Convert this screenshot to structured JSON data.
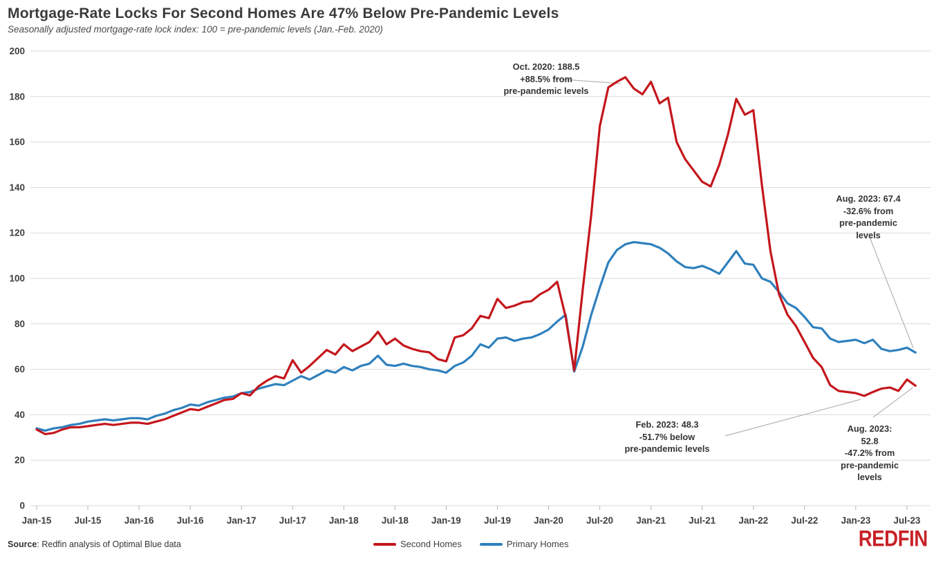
{
  "header": {
    "title": "Mortgage-Rate Locks For Second Homes Are 47% Below Pre-Pandemic Levels",
    "subtitle": "Seasonally adjusted mortgage-rate lock index: 100 = pre-pandemic levels (Jan.-Feb. 2020)"
  },
  "chart_data": {
    "type": "line",
    "x_unit": "month",
    "x_start": "Jan-2015",
    "x_end": "Aug-2023",
    "x_tick_labels": [
      "Jan-15",
      "Jul-15",
      "Jan-16",
      "Jul-16",
      "Jan-17",
      "Jul-17",
      "Jan-18",
      "Jul-18",
      "Jan-19",
      "Jul-19",
      "Jan-20",
      "Jul-20",
      "Jan-21",
      "Jul-21",
      "Jan-22",
      "Jul-22",
      "Jan-23",
      "Jul-23"
    ],
    "y_ticks": [
      0,
      20,
      40,
      60,
      80,
      100,
      120,
      140,
      160,
      180,
      200
    ],
    "ylim": [
      0,
      200
    ],
    "grid": "horizontal",
    "legend_position": "bottom-center",
    "series": [
      {
        "name": "Second Homes",
        "color": "#c4161c",
        "values": [
          33.5,
          31.5,
          32.0,
          33.5,
          34.5,
          34.5,
          35.0,
          35.5,
          36.0,
          35.5,
          36.0,
          36.5,
          36.5,
          36.0,
          37.0,
          38.0,
          39.5,
          41.0,
          42.5,
          42.0,
          43.5,
          45.0,
          46.5,
          47.0,
          49.5,
          48.5,
          52.5,
          55.0,
          57.0,
          56.0,
          64.0,
          58.5,
          61.5,
          65.0,
          68.5,
          66.5,
          71.0,
          68.0,
          70.0,
          72.0,
          76.5,
          71.0,
          73.5,
          70.5,
          69.0,
          68.0,
          67.5,
          64.5,
          63.5,
          74.0,
          75.0,
          78.0,
          83.5,
          82.5,
          91.0,
          87.0,
          88.0,
          89.5,
          90.0,
          93.0,
          95.0,
          98.5,
          83.0,
          59.5,
          95.0,
          128.0,
          167.0,
          184.0,
          186.5,
          188.5,
          183.5,
          181.0,
          186.5,
          177.0,
          179.5,
          160.0,
          152.5,
          147.5,
          142.5,
          140.5,
          150.0,
          163.0,
          179.0,
          172.0,
          174.0,
          141.0,
          112.0,
          93.0,
          84.0,
          79.0,
          72.0,
          65.0,
          61.0,
          53.0,
          50.5,
          50.0,
          49.5,
          48.3,
          50.0,
          51.5,
          52.0,
          50.5,
          55.5,
          52.8
        ]
      },
      {
        "name": "Primary Homes",
        "color": "#2e80bd",
        "values": [
          34.0,
          33.0,
          34.0,
          34.5,
          35.5,
          36.0,
          37.0,
          37.5,
          38.0,
          37.5,
          38.0,
          38.5,
          38.5,
          38.0,
          39.5,
          40.5,
          42.0,
          43.0,
          44.5,
          44.0,
          45.5,
          46.5,
          47.5,
          48.0,
          49.5,
          50.0,
          51.5,
          52.5,
          53.5,
          53.0,
          55.0,
          57.0,
          55.5,
          57.5,
          59.5,
          58.5,
          61.0,
          59.5,
          61.5,
          62.5,
          66.0,
          62.0,
          61.5,
          62.5,
          61.5,
          61.0,
          60.0,
          59.5,
          58.5,
          61.5,
          63.0,
          66.0,
          71.0,
          69.5,
          73.5,
          74.0,
          72.5,
          73.5,
          74.0,
          75.5,
          77.5,
          81.0,
          84.0,
          59.0,
          70.0,
          84.0,
          96.0,
          107.0,
          112.5,
          115.0,
          116.0,
          115.5,
          115.0,
          113.5,
          111.0,
          107.5,
          105.0,
          104.5,
          105.5,
          104.0,
          102.0,
          107.0,
          112.0,
          106.5,
          106.0,
          100.0,
          98.5,
          94.0,
          89.0,
          87.0,
          83.0,
          78.5,
          78.0,
          73.5,
          72.0,
          72.5,
          73.0,
          71.5,
          73.0,
          69.0,
          68.0,
          68.5,
          69.5,
          67.4
        ]
      }
    ],
    "annotations": [
      {
        "id": "oct-2020-peak",
        "series": "Second Homes",
        "point": "Oct-2020",
        "value": 188.5,
        "text": "Oct. 2020: 188.5\n+88.5% from\npre-pandemic levels"
      },
      {
        "id": "aug-2023-primary",
        "series": "Primary Homes",
        "point": "Aug-2023",
        "value": 67.4,
        "text": "Aug. 2023: 67.4\n-32.6% from\npre-pandemic levels"
      },
      {
        "id": "feb-2023-trough",
        "series": "Second Homes",
        "point": "Feb-2023",
        "value": 48.3,
        "text": "Feb. 2023: 48.3\n-51.7% below\npre-pandemic levels"
      },
      {
        "id": "aug-2023-second",
        "series": "Second Homes",
        "point": "Aug-2023",
        "value": 52.8,
        "text": "Aug. 2023: 52.8\n-47.2% from\npre-pandemic levels"
      }
    ]
  },
  "footer": {
    "source_label": "Source",
    "source_text": ": Redfin analysis of Optimal Blue data",
    "logo_text": "REDFIN"
  },
  "colors": {
    "second_homes": "#c4161c",
    "primary_homes": "#2e80bd",
    "grid": "#d9d9d9",
    "axis_text": "#3f3f3f",
    "annotation_line": "#b3b3b3",
    "logo_red": "#c82127"
  }
}
